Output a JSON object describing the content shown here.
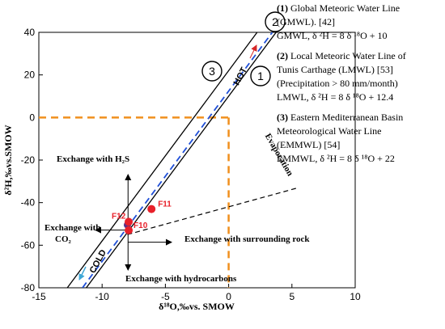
{
  "chart_data": {
    "type": "scatter",
    "xlabel": "δ¹⁸O,‰vs. SMOW",
    "ylabel": "δ²H,‰vs.SMOW",
    "xlim": [
      -15,
      10
    ],
    "ylim": [
      -80,
      40
    ],
    "x_ticks": [
      -15,
      -10,
      -5,
      0,
      5,
      10
    ],
    "y_ticks": [
      -80,
      -60,
      -40,
      -20,
      0,
      20,
      40
    ],
    "x_tick_labels": [
      "-15",
      "-10",
      "-5",
      "0",
      "5",
      "10"
    ],
    "y_tick_labels": [
      "-80",
      "-60",
      "-40",
      "-20",
      "0",
      "20",
      "40"
    ],
    "grid": false,
    "lines": [
      {
        "id": "gmwl",
        "marker": "1",
        "slope": 8,
        "intercept": 10,
        "color": "#000000",
        "style": "solid"
      },
      {
        "id": "lmwl",
        "marker": "2",
        "slope": 8,
        "intercept": 12.4,
        "color": "#1f4fd8",
        "style": "dashed"
      },
      {
        "id": "emmwl",
        "marker": "3",
        "slope": 8,
        "intercept": 22,
        "color": "#000000",
        "style": "solid"
      }
    ],
    "evaporation_line": {
      "x": [
        -8,
        5.5
      ],
      "y": [
        -55,
        -33
      ]
    },
    "points": [
      {
        "label": "F11",
        "x": -6.1,
        "y": -43
      },
      {
        "label": "F12",
        "x": -7.9,
        "y": -49
      },
      {
        "label": "F10",
        "x": -7.9,
        "y": -53
      }
    ],
    "point_extra_markers": [
      {
        "x": -8.0,
        "y": -50.5,
        "color": "#5b2f86"
      }
    ],
    "reference_lines": {
      "x": 0,
      "y": 0,
      "color": "#f0901e"
    },
    "annotations": {
      "hot": "HOT",
      "cold": "COLD",
      "evaporation": "Evaporation",
      "exchange_h2s": "Exchange with H₂S",
      "exchange_co2_line1": "Exchange with",
      "exchange_co2_line2": "CO₂",
      "exchange_rock": "Exchange with surrounding rock",
      "exchange_hydrocarbons": "Exchange with hydrocarbons"
    },
    "legend": {
      "placement": "right",
      "entries": [
        {
          "number": "(1)",
          "title": "Global Meteoric Water Line",
          "lines": [
            "(GMWL). [42]",
            "GMWL, δ ²H = 8 δ ¹⁸O + 10"
          ]
        },
        {
          "number": "(2)",
          "title": "Local Meteoric Water Line of",
          "lines": [
            "Tunis Carthage (LMWL) [53]",
            "(Precipitation > 80 mm/month)",
            "LMWL, δ ²H = 8 δ ¹⁸O + 12.4"
          ]
        },
        {
          "number": "(3)",
          "title": "Eastern Mediterranean Basin",
          "lines": [
            "Meteorological Water Line",
            "(EMMWL) [54]",
            "EMMWL, δ ²H = 8 δ ¹⁸O + 22"
          ]
        }
      ]
    }
  }
}
